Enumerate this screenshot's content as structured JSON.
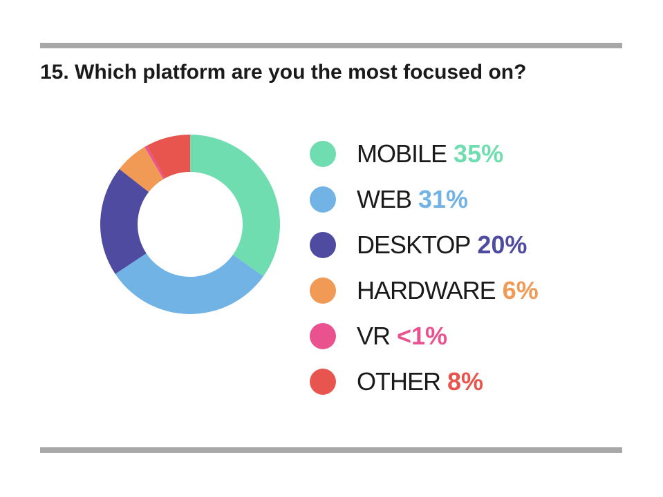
{
  "question": "15. Which platform are you the most focused on?",
  "chart_data": {
    "type": "pie",
    "categories": [
      "MOBILE",
      "WEB",
      "DESKTOP",
      "HARDWARE",
      "VR",
      "OTHER"
    ],
    "values": [
      35,
      31,
      20,
      6,
      0.5,
      8
    ],
    "value_labels": [
      "35%",
      "31%",
      "20%",
      "6%",
      "<1%",
      "8%"
    ],
    "colors": [
      "#6fddb0",
      "#71b3e4",
      "#4e4ba0",
      "#f09a56",
      "#e9528f",
      "#e8554e"
    ],
    "donut": true,
    "legend_position": "right"
  }
}
